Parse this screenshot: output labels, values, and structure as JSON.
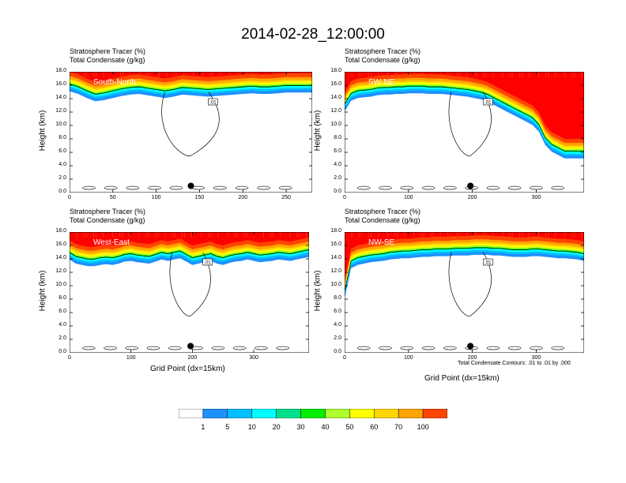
{
  "title": "2014-02-28_12:00:00",
  "colors": {
    "levels": [
      "#ffffff",
      "#1e90ff",
      "#00bfff",
      "#00ffff",
      "#00e08a",
      "#00ee00",
      "#adff2f",
      "#ffff00",
      "#ffd700",
      "#ffa500",
      "#ff4500",
      "#ff0000"
    ],
    "contour": "#000000"
  },
  "colorbar": {
    "labels": [
      "1",
      "5",
      "10",
      "20",
      "30",
      "40",
      "50",
      "60",
      "70",
      "100"
    ]
  },
  "contour_note": "Total Condensate Contours: .01 to .01 by .000",
  "panels": [
    {
      "caption1": "Stratosphere Tracer   (%)",
      "caption2": "Total Condensate   (g/kg)",
      "name": "South-North",
      "ylabel": "Height (km)",
      "xlabel": "",
      "xticks": [
        "0",
        "50",
        "100",
        "150",
        "200",
        "250"
      ],
      "yticks": [
        "0.0",
        "2.0",
        "4.0",
        "6.0",
        "8.0",
        "10.0",
        "12.0",
        "14.0",
        "16.0",
        "18.0"
      ],
      "contour_label": ".01"
    },
    {
      "caption1": "Stratosphere Tracer   (%)",
      "caption2": "Total Condensate   (g/kg)",
      "name": "SW-NE",
      "ylabel": "Height (km)",
      "xlabel": "",
      "xticks": [
        "0",
        "100",
        "200",
        "300"
      ],
      "yticks": [
        "0.0",
        "2.0",
        "4.0",
        "6.0",
        "8.0",
        "10.0",
        "12.0",
        "14.0",
        "16.0",
        "18.0"
      ],
      "contour_label": ".01"
    },
    {
      "caption1": "Stratosphere Tracer   (%)",
      "caption2": "Total Condensate   (g/kg)",
      "name": "West-East",
      "ylabel": "Height (km)",
      "xlabel": "Grid Point (dx=15km)",
      "xticks": [
        "0",
        "100",
        "200",
        "300"
      ],
      "yticks": [
        "0.0",
        "2.0",
        "4.0",
        "6.0",
        "8.0",
        "10.0",
        "12.0",
        "14.0",
        "16.0",
        "18.0"
      ],
      "contour_label": ".01"
    },
    {
      "caption1": "Stratosphere Tracer   (%)",
      "caption2": "Total Condensate   (g/kg)",
      "name": "NW-SE",
      "ylabel": "Height (km)",
      "xlabel": "Grid Point (dx=15km)",
      "xticks": [
        "0",
        "100",
        "200",
        "300"
      ],
      "yticks": [
        "0.0",
        "2.0",
        "4.0",
        "6.0",
        "8.0",
        "10.0",
        "12.0",
        "14.0",
        "16.0",
        "18.0"
      ],
      "contour_label": ".01"
    }
  ],
  "chart_data": [
    {
      "type": "heatmap",
      "title": "South-North",
      "xlabel": "",
      "ylabel": "Height (km)",
      "xlim": [
        0,
        280
      ],
      "ylim": [
        0,
        18
      ],
      "grid": false,
      "levels": [
        1,
        5,
        10,
        20,
        30,
        40,
        50,
        60,
        70,
        100
      ],
      "tropopause_height": [
        16.0,
        15.6,
        15.0,
        14.5,
        14.7,
        15.0,
        15.3,
        15.5,
        15.6,
        15.4,
        15.2,
        15.0,
        15.2,
        15.5,
        15.4,
        15.3,
        15.2,
        15.3,
        15.4,
        15.5,
        15.6,
        15.7,
        15.6,
        15.6,
        15.7,
        15.8,
        15.8,
        15.8,
        15.8
      ],
      "marker": {
        "x": 140,
        "y": 1.0
      }
    },
    {
      "type": "heatmap",
      "title": "SW-NE",
      "xlabel": "",
      "ylabel": "Height (km)",
      "xlim": [
        0,
        375
      ],
      "ylim": [
        0,
        18
      ],
      "grid": false,
      "levels": [
        1,
        5,
        10,
        20,
        30,
        40,
        50,
        60,
        70,
        100
      ],
      "tropopause_height": [
        13.0,
        14.6,
        15.0,
        15.1,
        15.2,
        15.4,
        15.5,
        15.5,
        15.6,
        15.6,
        15.7,
        15.7,
        15.7,
        15.6,
        15.6,
        15.6,
        15.5,
        15.4,
        15.3,
        15.2,
        15.0,
        14.8,
        14.5,
        14.0,
        13.5,
        13.0,
        12.5,
        12.0,
        11.5,
        11.0,
        10.0,
        8.0,
        7.0,
        6.5,
        6.0,
        6.0,
        6.0,
        6.0
      ],
      "marker": {
        "x": 197,
        "y": 1.0
      }
    },
    {
      "type": "heatmap",
      "title": "West-East",
      "xlabel": "Grid Point (dx=15km)",
      "ylabel": "Height (km)",
      "xlim": [
        0,
        390
      ],
      "ylim": [
        0,
        18
      ],
      "grid": false,
      "levels": [
        1,
        5,
        10,
        20,
        30,
        40,
        50,
        60,
        70,
        100
      ],
      "tropopause_height": [
        14.8,
        14.2,
        14.0,
        13.8,
        13.8,
        14.0,
        14.1,
        14.0,
        14.2,
        14.5,
        14.6,
        14.4,
        14.3,
        14.2,
        14.5,
        14.8,
        14.6,
        14.8,
        15.0,
        14.5,
        14.0,
        14.2,
        14.4,
        14.6,
        14.2,
        14.0,
        14.3,
        14.5,
        14.6,
        14.8,
        14.6,
        14.4,
        14.5,
        14.6,
        14.8,
        14.7,
        14.6,
        14.8,
        15.0,
        15.2
      ],
      "marker": {
        "x": 197,
        "y": 1.0
      }
    },
    {
      "type": "heatmap",
      "title": "NW-SE",
      "xlabel": "Grid Point (dx=15km)",
      "ylabel": "Height (km)",
      "xlim": [
        0,
        375
      ],
      "ylim": [
        0,
        18
      ],
      "grid": false,
      "levels": [
        1,
        5,
        10,
        20,
        30,
        40,
        50,
        60,
        70,
        100
      ],
      "tropopause_height": [
        9.0,
        13.5,
        14.0,
        14.2,
        14.4,
        14.5,
        14.6,
        14.8,
        14.9,
        15.0,
        15.0,
        15.1,
        15.2,
        15.2,
        15.3,
        15.3,
        15.3,
        15.4,
        15.4,
        15.4,
        15.5,
        15.5,
        15.5,
        15.4,
        15.4,
        15.3,
        15.2,
        15.2,
        15.2,
        15.3,
        15.3,
        15.2,
        15.1,
        15.0,
        15.0,
        14.9,
        14.8,
        14.6
      ],
      "marker": {
        "x": 197,
        "y": 1.0
      }
    }
  ]
}
